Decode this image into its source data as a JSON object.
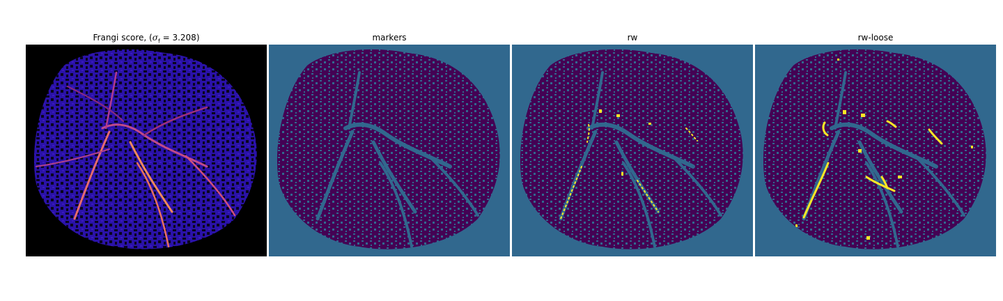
{
  "figure": {
    "panels": [
      {
        "id": "frangi",
        "title_prefix": "Frangi score, (",
        "title_symbol": "σ",
        "title_subscript": "f",
        "title_suffix": " = 3.208)",
        "colormap": "magma",
        "background": "#000000"
      },
      {
        "id": "markers",
        "title": "markers",
        "colormap": "viridis",
        "background": "#31688e"
      },
      {
        "id": "rw",
        "title": "rw",
        "colormap": "viridis",
        "background": "#31688e"
      },
      {
        "id": "rw-loose",
        "title": "rw-loose",
        "colormap": "viridis",
        "background": "#31688e"
      }
    ],
    "colors": {
      "foreground_purple": "#440154",
      "background_teal": "#31688e",
      "highlight_yellow": "#fde725",
      "frangi_base": "#1a0f8a",
      "frangi_vessel": "#f07f5a"
    }
  }
}
